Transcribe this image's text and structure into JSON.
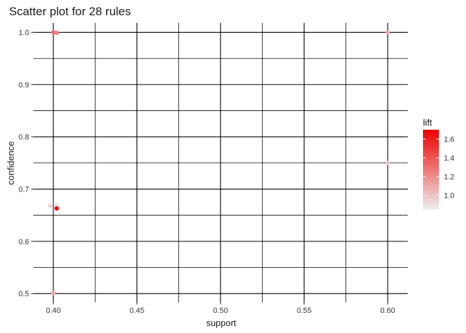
{
  "chart_data": {
    "type": "scatter",
    "title": "Scatter plot for 28 rules",
    "xlabel": "support",
    "ylabel": "confidence",
    "xlim": [
      0.388,
      0.612
    ],
    "ylim": [
      0.483,
      1.018
    ],
    "x_ticks": [
      0.4,
      0.45,
      0.5,
      0.55,
      0.6
    ],
    "x_tick_labels": [
      "0.40",
      "0.45",
      "0.50",
      "0.55",
      "0.60"
    ],
    "y_ticks": [
      0.5,
      0.6,
      0.7,
      0.8,
      0.9,
      1.0
    ],
    "y_tick_labels": [
      "0.5",
      "0.6",
      "0.7",
      "0.8",
      "0.9",
      "1.0"
    ],
    "grid": true,
    "color_scale": {
      "name": "lift",
      "min": 0.85,
      "max": 1.7,
      "ticks": [
        1.0,
        1.2,
        1.4,
        1.6
      ],
      "tick_labels": [
        "1.0",
        "1.2",
        "1.4",
        "1.6"
      ],
      "low_color": "#eeeeee",
      "high_color": "#ee0000"
    },
    "points": [
      {
        "support": 0.4,
        "confidence": 1.0,
        "lift": 1.3
      },
      {
        "support": 0.402,
        "confidence": 0.999,
        "lift": 1.25
      },
      {
        "support": 0.6,
        "confidence": 1.0,
        "lift": 1.1
      },
      {
        "support": 0.6,
        "confidence": 0.75,
        "lift": 1.0
      },
      {
        "support": 0.398,
        "confidence": 0.668,
        "lift": 0.95
      },
      {
        "support": 0.402,
        "confidence": 0.669,
        "lift": 0.9
      },
      {
        "support": 0.402,
        "confidence": 0.663,
        "lift": 1.67
      },
      {
        "support": 0.4,
        "confidence": 0.501,
        "lift": 1.1
      }
    ]
  }
}
